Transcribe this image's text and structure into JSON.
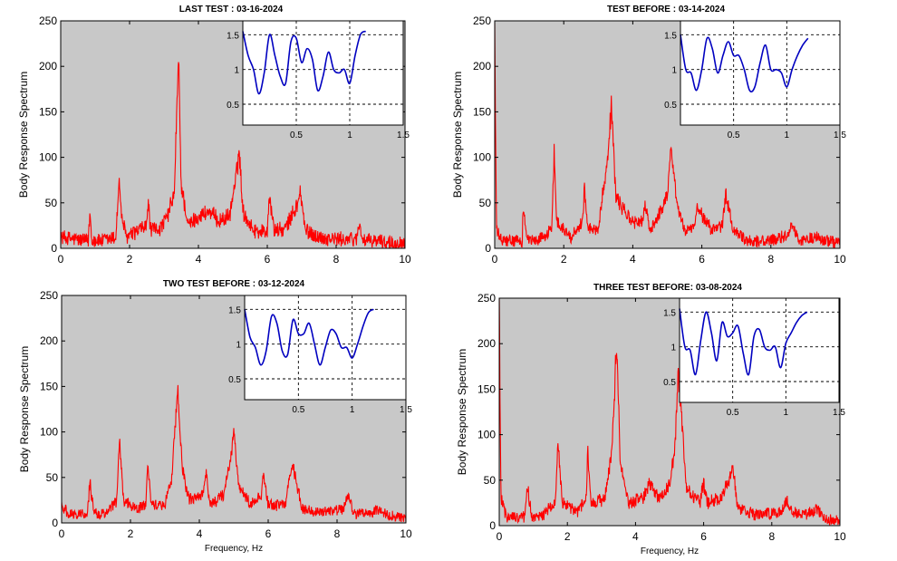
{
  "colors": {
    "axes_bg": "#c8c8c8",
    "spectrum": "#ff0000",
    "inset_line": "#0000c0",
    "inset_bg": "#ffffff",
    "axis": "#000000"
  },
  "chart_data": [
    {
      "type": "line",
      "title": "LAST TEST : 03-16-2024",
      "ylabel": "Body Response Spectrum",
      "xlabel": "",
      "xlim": [
        0,
        10
      ],
      "ylim": [
        0,
        250
      ],
      "xticks": [
        0,
        2,
        4,
        6,
        8,
        10
      ],
      "yticks": [
        0,
        50,
        100,
        150,
        200,
        250
      ],
      "grid": false,
      "series": [
        {
          "noise_level": 10,
          "x": [
            0,
            0.8,
            0.85,
            0.9,
            1.2,
            1.6,
            1.7,
            1.75,
            1.9,
            2.2,
            2.5,
            2.55,
            2.6,
            2.9,
            3.1,
            3.3,
            3.42,
            3.5,
            3.7,
            4.0,
            4.3,
            4.6,
            4.9,
            5.1,
            5.18,
            5.3,
            5.6,
            6.0,
            6.05,
            6.2,
            6.5,
            6.9,
            6.95,
            7.1,
            7.5,
            8.0,
            8.6,
            8.65,
            8.8,
            9.3,
            10.0
          ],
          "y": [
            12,
            8,
            40,
            10,
            8,
            12,
            77,
            40,
            12,
            18,
            25,
            55,
            20,
            22,
            35,
            60,
            210,
            70,
            25,
            35,
            40,
            30,
            35,
            80,
            108,
            40,
            20,
            18,
            60,
            20,
            20,
            50,
            65,
            20,
            12,
            10,
            10,
            28,
            8,
            8,
            5
          ]
        }
      ],
      "inset": {
        "xlim": [
          0,
          1.5
        ],
        "ylim": [
          0.2,
          1.7
        ],
        "xticks": [
          0.5,
          1,
          1.5
        ],
        "yticks": [
          0.5,
          1,
          1.5
        ],
        "grid": true,
        "x": [
          0.0,
          0.05,
          0.1,
          0.15,
          0.2,
          0.25,
          0.3,
          0.35,
          0.4,
          0.45,
          0.5,
          0.55,
          0.6,
          0.65,
          0.7,
          0.75,
          0.8,
          0.85,
          0.9,
          0.95,
          1.0,
          1.05,
          1.1,
          1.15
        ],
        "y": [
          1.55,
          1.2,
          1.0,
          0.65,
          0.95,
          1.5,
          1.2,
          0.9,
          0.8,
          1.4,
          1.45,
          1.1,
          1.3,
          1.15,
          0.7,
          0.9,
          1.25,
          1.0,
          0.95,
          1.0,
          0.8,
          1.2,
          1.5,
          1.55
        ]
      }
    },
    {
      "type": "line",
      "title": "TEST BEFORE : 03-14-2024",
      "ylabel": "Body Response Spectrum",
      "xlabel": "",
      "xlim": [
        0,
        10
      ],
      "ylim": [
        0,
        250
      ],
      "xticks": [
        0,
        2,
        4,
        6,
        8,
        10
      ],
      "yticks": [
        0,
        50,
        100,
        150,
        200,
        250
      ],
      "grid": false,
      "series": [
        {
          "noise_level": 8,
          "x": [
            0,
            0.05,
            0.2,
            0.8,
            0.82,
            0.95,
            1.2,
            1.65,
            1.72,
            1.8,
            2.2,
            2.55,
            2.6,
            2.7,
            3.0,
            3.3,
            3.38,
            3.5,
            3.6,
            4.0,
            4.3,
            4.35,
            4.5,
            4.8,
            5.0,
            5.1,
            5.3,
            5.5,
            5.8,
            5.85,
            6.3,
            6.6,
            6.7,
            6.9,
            7.3,
            8.0,
            8.5,
            8.6,
            8.8,
            9.3,
            10.0
          ],
          "y": [
            250,
            20,
            8,
            8,
            45,
            10,
            8,
            20,
            106,
            30,
            12,
            30,
            68,
            20,
            22,
            110,
            163,
            60,
            50,
            28,
            30,
            48,
            20,
            40,
            60,
            110,
            45,
            20,
            22,
            45,
            20,
            25,
            60,
            20,
            8,
            8,
            15,
            28,
            8,
            12,
            5
          ]
        }
      ],
      "inset": {
        "xlim": [
          0,
          1.5
        ],
        "ylim": [
          0.2,
          1.7
        ],
        "xticks": [
          0.5,
          1,
          1.5
        ],
        "yticks": [
          0.5,
          1,
          1.5
        ],
        "grid": true,
        "x": [
          0.0,
          0.05,
          0.1,
          0.15,
          0.2,
          0.25,
          0.3,
          0.35,
          0.4,
          0.45,
          0.5,
          0.55,
          0.6,
          0.65,
          0.7,
          0.75,
          0.8,
          0.85,
          0.9,
          0.95,
          1.0,
          1.05,
          1.1,
          1.15,
          1.2
        ],
        "y": [
          1.5,
          1.0,
          0.95,
          0.7,
          1.0,
          1.45,
          1.3,
          0.95,
          1.2,
          1.4,
          1.2,
          1.2,
          1.0,
          0.7,
          0.75,
          1.1,
          1.35,
          1.0,
          1.0,
          0.95,
          0.75,
          1.0,
          1.2,
          1.35,
          1.45
        ]
      }
    },
    {
      "type": "line",
      "title": "TWO TEST BEFORE : 03-12-2024",
      "ylabel": "Body Response Spectrum",
      "xlabel": "Frequency, Hz",
      "xlim": [
        0,
        10
      ],
      "ylim": [
        0,
        250
      ],
      "xticks": [
        0,
        2,
        4,
        6,
        8,
        10
      ],
      "yticks": [
        0,
        50,
        100,
        150,
        200,
        250
      ],
      "grid": false,
      "series": [
        {
          "noise_level": 7,
          "x": [
            0,
            0.2,
            0.75,
            0.82,
            0.95,
            1.3,
            1.6,
            1.68,
            1.8,
            2.2,
            2.45,
            2.5,
            2.6,
            3.0,
            3.2,
            3.38,
            3.5,
            3.7,
            4.1,
            4.2,
            4.3,
            4.7,
            4.95,
            5.0,
            5.15,
            5.5,
            5.8,
            5.85,
            6.0,
            6.5,
            6.6,
            6.7,
            7.0,
            7.5,
            8.2,
            8.3,
            8.5,
            9.0,
            9.1,
            9.5,
            10.0
          ],
          "y": [
            20,
            10,
            10,
            45,
            10,
            10,
            25,
            92,
            25,
            15,
            20,
            70,
            20,
            20,
            50,
            147,
            60,
            25,
            30,
            55,
            20,
            30,
            80,
            100,
            40,
            20,
            30,
            57,
            20,
            20,
            45,
            65,
            15,
            12,
            15,
            30,
            10,
            10,
            15,
            8,
            5
          ]
        }
      ],
      "inset": {
        "xlim": [
          0,
          1.5
        ],
        "ylim": [
          0.2,
          1.7
        ],
        "xticks": [
          0.5,
          1,
          1.5
        ],
        "yticks": [
          0.5,
          1,
          1.5
        ],
        "grid": true,
        "x": [
          0.0,
          0.05,
          0.1,
          0.15,
          0.2,
          0.25,
          0.3,
          0.35,
          0.4,
          0.45,
          0.5,
          0.55,
          0.6,
          0.65,
          0.7,
          0.75,
          0.8,
          0.85,
          0.9,
          0.95,
          1.0,
          1.05,
          1.1,
          1.15,
          1.2
        ],
        "y": [
          1.5,
          1.1,
          0.95,
          0.7,
          0.9,
          1.4,
          1.3,
          0.9,
          0.85,
          1.35,
          1.15,
          1.15,
          1.3,
          1.0,
          0.7,
          0.95,
          1.2,
          1.15,
          0.95,
          0.95,
          0.8,
          1.0,
          1.25,
          1.45,
          1.5
        ]
      }
    },
    {
      "type": "line",
      "title": "THREE TEST BEFORE:   03-08-2024",
      "ylabel": "Body Response Spectrum",
      "xlabel": "Frequency, Hz",
      "xlim": [
        0,
        10
      ],
      "ylim": [
        0,
        250
      ],
      "xticks": [
        0,
        2,
        4,
        6,
        8,
        10
      ],
      "yticks": [
        0,
        50,
        100,
        150,
        200,
        250
      ],
      "grid": false,
      "series": [
        {
          "noise_level": 8,
          "x": [
            0,
            0.05,
            0.2,
            0.75,
            0.82,
            0.95,
            1.3,
            1.65,
            1.72,
            1.85,
            2.3,
            2.55,
            2.6,
            2.7,
            3.1,
            3.3,
            3.45,
            3.55,
            3.8,
            4.2,
            4.4,
            4.7,
            5.0,
            5.15,
            5.25,
            5.5,
            5.9,
            6.0,
            6.1,
            6.5,
            6.75,
            6.85,
            7.0,
            7.5,
            8.3,
            8.45,
            8.6,
            9.0,
            9.3,
            9.6,
            10.0
          ],
          "y": [
            250,
            30,
            10,
            10,
            45,
            10,
            12,
            25,
            95,
            25,
            15,
            30,
            82,
            25,
            30,
            80,
            202,
            70,
            25,
            30,
            45,
            30,
            45,
            80,
            170,
            40,
            25,
            50,
            25,
            30,
            50,
            65,
            20,
            12,
            15,
            28,
            15,
            12,
            18,
            8,
            5
          ]
        }
      ],
      "inset": {
        "xlim": [
          0,
          1.5
        ],
        "ylim": [
          0.2,
          1.7
        ],
        "xticks": [
          0.5,
          1,
          1.5
        ],
        "yticks": [
          0.5,
          1,
          1.5
        ],
        "grid": true,
        "x": [
          0.0,
          0.05,
          0.1,
          0.15,
          0.2,
          0.25,
          0.3,
          0.35,
          0.4,
          0.45,
          0.5,
          0.55,
          0.6,
          0.65,
          0.7,
          0.75,
          0.8,
          0.85,
          0.9,
          0.95,
          1.0,
          1.05,
          1.1,
          1.15,
          1.2
        ],
        "y": [
          1.55,
          1.0,
          0.95,
          0.6,
          1.1,
          1.5,
          1.2,
          0.8,
          1.35,
          1.15,
          1.2,
          1.3,
          0.9,
          0.6,
          1.15,
          1.25,
          1.0,
          0.95,
          1.0,
          0.7,
          1.05,
          1.2,
          1.35,
          1.45,
          1.5
        ]
      }
    }
  ]
}
